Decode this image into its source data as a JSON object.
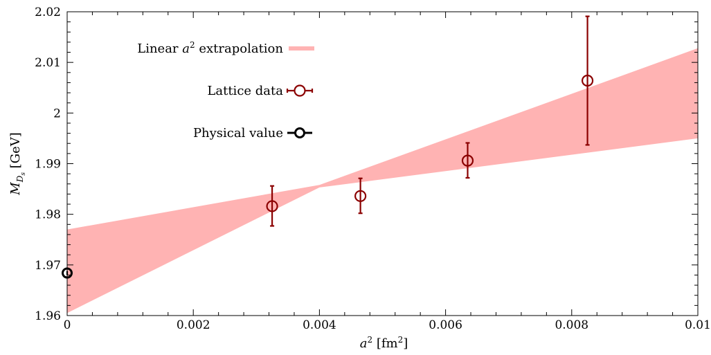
{
  "chart_data": {
    "type": "scatter",
    "xlabel": "a² [fm²]",
    "ylabel": "M_Ds [GeV]",
    "xlim": [
      0,
      0.01
    ],
    "ylim": [
      1.96,
      2.02
    ],
    "x_ticks": [
      "0",
      "0.002",
      "0.004",
      "0.006",
      "0.008",
      "0.01"
    ],
    "y_ticks": [
      "1.96",
      "1.97",
      "1.98",
      "1.99",
      "2",
      "2.01",
      "2.02"
    ],
    "legend_position": "top-center",
    "legend": [
      {
        "label": "Linear a² extrapolation",
        "style": "band"
      },
      {
        "label": "Lattice data",
        "style": "open-circle-errorbar"
      },
      {
        "label": "Physical value",
        "style": "open-circle-errorbar"
      }
    ],
    "band": {
      "name": "Linear a² extrapolation",
      "x": [
        0,
        0.004,
        0.01
      ],
      "lower": [
        1.9605,
        1.9853,
        1.995
      ],
      "upper": [
        1.977,
        1.9858,
        2.0128
      ]
    },
    "series": [
      {
        "name": "Lattice data",
        "x": [
          0.00325,
          0.00465,
          0.00635,
          0.00825
        ],
        "y": [
          1.9816,
          1.9836,
          1.9906,
          2.0064
        ],
        "yerr_low": [
          1.9777,
          1.9802,
          1.9872,
          1.9937
        ],
        "yerr_high": [
          1.9856,
          1.9871,
          1.9941,
          2.0191
        ]
      },
      {
        "name": "Physical value",
        "x": [
          0
        ],
        "y": [
          1.9684
        ],
        "yerr_low": [
          1.968
        ],
        "yerr_high": [
          1.9688
        ]
      }
    ],
    "colors": {
      "band": "#ffb3b3",
      "lattice": "#8b0000",
      "physical": "#000000"
    }
  }
}
